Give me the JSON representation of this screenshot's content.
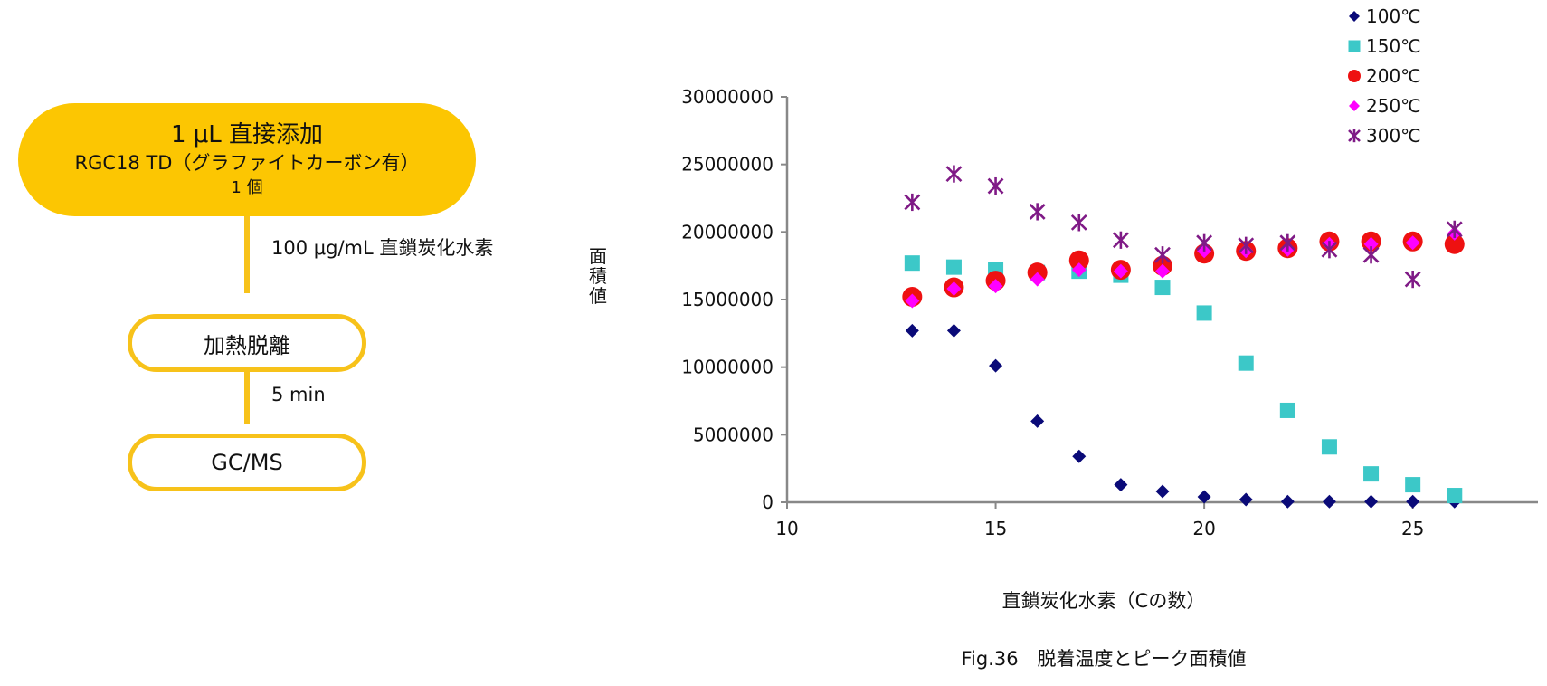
{
  "flowchart": {
    "step1": {
      "line1": "1 μL 直接添加",
      "line2": "RGC18 TD（グラファイトカーボン有）",
      "line3": "1 個"
    },
    "connector1_label": "100 μg/mL  直鎖炭化水素",
    "step2": "加熱脱離",
    "connector2_label": "5 min",
    "step3": "GC/MS"
  },
  "chart_data": {
    "type": "scatter",
    "title": "",
    "xlabel": "直鎖炭化水素（Cの数）",
    "ylabel": "面積値",
    "caption": "Fig.36　脱着温度とピーク面積値",
    "xlim": [
      10,
      28
    ],
    "ylim": [
      0,
      30000000
    ],
    "x_ticks": [
      10,
      15,
      20,
      25
    ],
    "x_tick_labels": [
      "10",
      "15",
      "20",
      "25"
    ],
    "y_ticks": [
      0,
      5000000,
      10000000,
      15000000,
      20000000,
      25000000,
      30000000
    ],
    "y_tick_labels": [
      "0",
      "5000000",
      "10000000",
      "15000000",
      "20000000",
      "25000000",
      "30000000"
    ],
    "legend_position": "top-right",
    "series": [
      {
        "name": "100℃",
        "marker": "diamond",
        "color": "#0a0a78",
        "x": [
          13,
          14,
          15,
          16,
          17,
          18,
          19,
          20,
          21,
          22,
          23,
          24,
          25,
          26
        ],
        "y": [
          12700000,
          12700000,
          10100000,
          6000000,
          3400000,
          1300000,
          800000,
          400000,
          200000,
          50000,
          50000,
          50000,
          50000,
          50000
        ]
      },
      {
        "name": "150℃",
        "marker": "square",
        "color": "#3cc8c8",
        "x": [
          13,
          14,
          15,
          16,
          17,
          18,
          19,
          20,
          21,
          22,
          23,
          24,
          25,
          26
        ],
        "y": [
          17700000,
          17400000,
          17200000,
          17000000,
          17100000,
          16800000,
          15900000,
          14000000,
          10300000,
          6800000,
          4100000,
          2100000,
          1300000,
          500000
        ]
      },
      {
        "name": "200℃",
        "marker": "circle",
        "color": "#ee1111",
        "x": [
          13,
          14,
          15,
          16,
          17,
          18,
          19,
          20,
          21,
          22,
          23,
          24,
          25,
          26
        ],
        "y": [
          15200000,
          15900000,
          16400000,
          17000000,
          17900000,
          17200000,
          17500000,
          18400000,
          18600000,
          18800000,
          19300000,
          19300000,
          19300000,
          19100000
        ]
      },
      {
        "name": "250℃",
        "marker": "diamond",
        "color": "#ff00ff",
        "x": [
          13,
          14,
          15,
          16,
          17,
          18,
          19,
          20,
          21,
          22,
          23,
          24,
          25,
          26
        ],
        "y": [
          14900000,
          15800000,
          16000000,
          16500000,
          17200000,
          17100000,
          17100000,
          18600000,
          18600000,
          18700000,
          19100000,
          19100000,
          19200000,
          19900000
        ]
      },
      {
        "name": "300℃",
        "marker": "asterisk",
        "color": "#7f1a86",
        "x": [
          13,
          14,
          15,
          16,
          17,
          18,
          19,
          20,
          21,
          22,
          23,
          24,
          25,
          26
        ],
        "y": [
          22200000,
          24300000,
          23400000,
          21500000,
          20700000,
          19400000,
          18300000,
          19200000,
          19000000,
          19200000,
          18700000,
          18300000,
          16500000,
          20200000
        ]
      }
    ]
  }
}
